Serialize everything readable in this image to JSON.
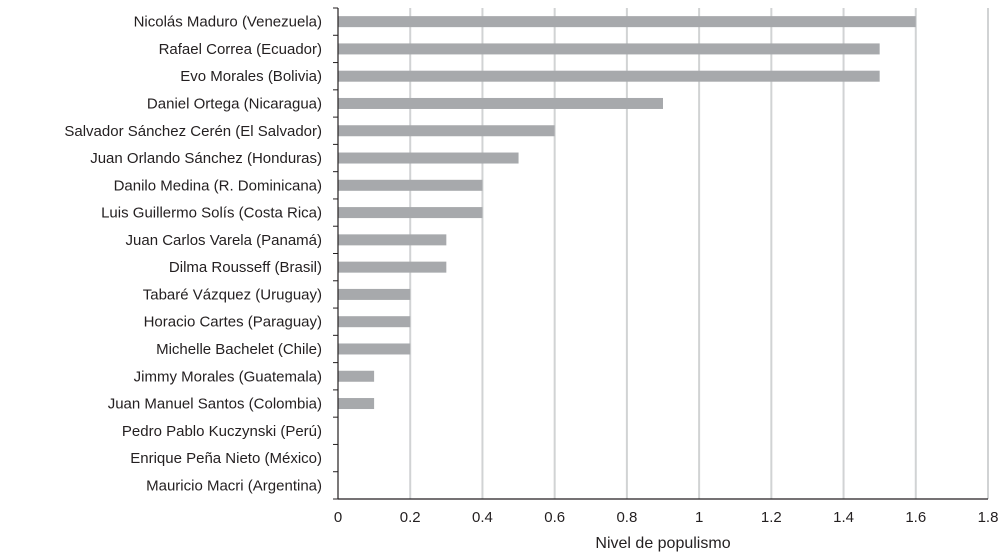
{
  "chart_data": {
    "type": "bar",
    "orientation": "horizontal",
    "categories": [
      "Nicolás Maduro (Venezuela)",
      "Rafael Correa (Ecuador)",
      "Evo Morales (Bolivia)",
      "Daniel Ortega (Nicaragua)",
      "Salvador Sánchez Cerén (El Salvador)",
      "Juan Orlando Sánchez (Honduras)",
      "Danilo Medina (R. Dominicana)",
      "Luis Guillermo Solís (Costa Rica)",
      "Juan Carlos Varela (Panamá)",
      "Dilma Rousseff (Brasil)",
      "Tabaré Vázquez (Uruguay)",
      "Horacio Cartes (Paraguay)",
      "Michelle Bachelet (Chile)",
      "Jimmy Morales (Guatemala)",
      "Juan Manuel Santos (Colombia)",
      "Pedro Pablo Kuczynski (Perú)",
      "Enrique Peña Nieto (México)",
      "Mauricio Macri (Argentina)"
    ],
    "values": [
      1.6,
      1.5,
      1.5,
      0.9,
      0.6,
      0.5,
      0.4,
      0.4,
      0.3,
      0.3,
      0.2,
      0.2,
      0.2,
      0.1,
      0.1,
      0,
      0,
      0
    ],
    "xlabel": "Nivel de populismo",
    "ylabel": "",
    "xlim": [
      0,
      1.8
    ],
    "xticks": [
      "0",
      "0.2",
      "0.4",
      "0.6",
      "0.8",
      "1",
      "1.2",
      "1.4",
      "1.6",
      "1.8"
    ],
    "grid": "vertical",
    "bar_color": "#a7a9ac",
    "grid_color": "#d1d3d4",
    "axis_color": "#231f20"
  }
}
